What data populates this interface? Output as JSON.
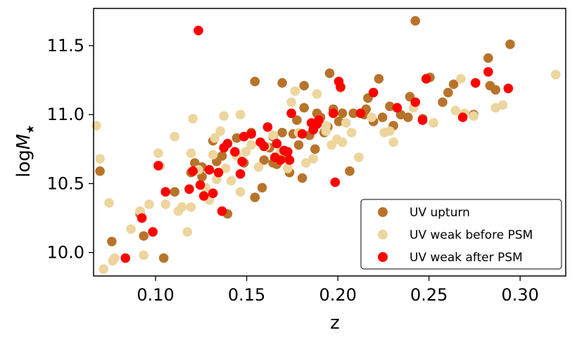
{
  "chart_data": {
    "type": "scatter",
    "xlabel": "z",
    "ylabel_main": "log",
    "ylabel_symbol": "M",
    "ylabel_sub": "★",
    "xlim": [
      0.066,
      0.325
    ],
    "ylim": [
      9.83,
      11.77
    ],
    "xticks": [
      0.1,
      0.15,
      0.2,
      0.25,
      0.3
    ],
    "xtick_labels": [
      "0.10",
      "0.15",
      "0.20",
      "0.25",
      "0.30"
    ],
    "yticks": [
      10.0,
      10.5,
      11.0,
      11.5
    ],
    "ytick_labels": [
      "10.0",
      "10.5",
      "11.0",
      "11.5"
    ],
    "legend_position": "lower-right",
    "series": [
      {
        "name": "UV upturn",
        "color": "#B8732A",
        "points": [
          [
            0.0695,
            10.59
          ],
          [
            0.076,
            10.08
          ],
          [
            0.0915,
            10.28
          ],
          [
            0.0935,
            10.12
          ],
          [
            0.1045,
            9.96
          ],
          [
            0.1105,
            10.44
          ],
          [
            0.1195,
            10.58
          ],
          [
            0.1215,
            10.65
          ],
          [
            0.1255,
            10.62
          ],
          [
            0.1315,
            10.81
          ],
          [
            0.1335,
            10.66
          ],
          [
            0.1365,
            10.7
          ],
          [
            0.1395,
            10.28
          ],
          [
            0.1445,
            10.83
          ],
          [
            0.1485,
            10.65
          ],
          [
            0.1525,
            10.87
          ],
          [
            0.1545,
            10.4
          ],
          [
            0.1585,
            10.47
          ],
          [
            0.1595,
            10.67
          ],
          [
            0.1625,
            10.76
          ],
          [
            0.1645,
            10.84
          ],
          [
            0.1665,
            10.64
          ],
          [
            0.1695,
            10.87
          ],
          [
            0.1715,
            10.71
          ],
          [
            0.1735,
            10.58
          ],
          [
            0.1755,
            10.86
          ],
          [
            0.1775,
            10.96
          ],
          [
            0.1785,
            10.78
          ],
          [
            0.1805,
            10.54
          ],
          [
            0.1815,
            11.05
          ],
          [
            0.1845,
            10.85
          ],
          [
            0.1865,
            10.93
          ],
          [
            0.1885,
            11.01
          ],
          [
            0.1905,
            10.98
          ],
          [
            0.1925,
            10.87
          ],
          [
            0.1945,
            10.91
          ],
          [
            0.1975,
            11.04
          ],
          [
            0.2005,
            10.95
          ],
          [
            0.2025,
            11.01
          ],
          [
            0.2065,
            10.59
          ],
          [
            0.2085,
            11.01
          ],
          [
            0.2145,
            11.0
          ],
          [
            0.2165,
            11.12
          ],
          [
            0.2195,
            10.95
          ],
          [
            0.2245,
            10.98
          ],
          [
            0.2285,
            11.06
          ],
          [
            0.2305,
            10.92
          ],
          [
            0.2345,
            11.0
          ],
          [
            0.2385,
            10.98
          ],
          [
            0.2395,
            11.13
          ],
          [
            0.2425,
            11.68
          ],
          [
            0.2465,
            10.97
          ],
          [
            0.2505,
            11.27
          ],
          [
            0.2575,
            11.09
          ],
          [
            0.2605,
            11.16
          ],
          [
            0.2635,
            11.22
          ],
          [
            0.2745,
            11.0
          ],
          [
            0.2825,
            11.41
          ],
          [
            0.2835,
            11.21
          ],
          [
            0.2865,
            11.18
          ],
          [
            0.2945,
            11.51
          ],
          [
            0.1545,
            11.24
          ],
          [
            0.1695,
            11.23
          ],
          [
            0.1815,
            11.21
          ],
          [
            0.1955,
            11.3
          ],
          [
            0.2225,
            11.26
          ],
          [
            0.2155,
            11.04
          ],
          [
            0.1875,
            10.75
          ],
          [
            0.1645,
            10.65
          ],
          [
            0.1255,
            10.55
          ]
        ]
      },
      {
        "name": "UV weak before PSM",
        "color": "#EDD59E",
        "points": [
          [
            0.0675,
            10.92
          ],
          [
            0.0695,
            10.68
          ],
          [
            0.0715,
            9.88
          ],
          [
            0.0745,
            10.36
          ],
          [
            0.0765,
            9.94
          ],
          [
            0.0775,
            9.96
          ],
          [
            0.0865,
            10.17
          ],
          [
            0.0915,
            10.3
          ],
          [
            0.0935,
            9.98
          ],
          [
            0.0965,
            10.35
          ],
          [
            0.1015,
            10.72
          ],
          [
            0.1025,
            10.63
          ],
          [
            0.1055,
            10.35
          ],
          [
            0.1105,
            10.84
          ],
          [
            0.1145,
            10.33
          ],
          [
            0.1175,
            10.15
          ],
          [
            0.1195,
            10.72
          ],
          [
            0.1205,
            10.97
          ],
          [
            0.1235,
            10.6
          ],
          [
            0.1275,
            10.47
          ],
          [
            0.1295,
            10.38
          ],
          [
            0.1315,
            10.71
          ],
          [
            0.1335,
            10.53
          ],
          [
            0.1355,
            10.88
          ],
          [
            0.1375,
            10.99
          ],
          [
            0.1385,
            10.61
          ],
          [
            0.1415,
            10.52
          ],
          [
            0.1445,
            10.7
          ],
          [
            0.1465,
            10.44
          ],
          [
            0.1495,
            10.73
          ],
          [
            0.1525,
            10.78
          ],
          [
            0.1565,
            10.62
          ],
          [
            0.1605,
            10.77
          ],
          [
            0.1645,
            10.85
          ],
          [
            0.1685,
            10.73
          ],
          [
            0.1725,
            10.61
          ],
          [
            0.1745,
            11.09
          ],
          [
            0.1765,
            11.17
          ],
          [
            0.1785,
            10.87
          ],
          [
            0.1825,
            10.65
          ],
          [
            0.1865,
            10.68
          ],
          [
            0.1885,
            11.15
          ],
          [
            0.1935,
            10.88
          ],
          [
            0.1965,
            10.78
          ],
          [
            0.1995,
            10.82
          ],
          [
            0.2015,
            11.19
          ],
          [
            0.2025,
            10.8
          ],
          [
            0.2045,
            10.94
          ],
          [
            0.2075,
            10.87
          ],
          [
            0.2115,
            10.69
          ],
          [
            0.2185,
            10.98
          ],
          [
            0.2255,
            10.87
          ],
          [
            0.2285,
            10.88
          ],
          [
            0.2305,
            10.8
          ],
          [
            0.2415,
            11.05
          ],
          [
            0.2525,
            10.94
          ],
          [
            0.2645,
            11.03
          ],
          [
            0.2675,
            11.26
          ],
          [
            0.2695,
            11.01
          ],
          [
            0.2745,
            10.99
          ],
          [
            0.2865,
            11.05
          ],
          [
            0.2905,
            11.07
          ],
          [
            0.3195,
            11.29
          ],
          [
            0.1195,
            10.33
          ],
          [
            0.1465,
            11.0
          ],
          [
            0.1125,
            10.3
          ],
          [
            0.1325,
            10.83
          ],
          [
            0.1935,
            10.92
          ]
        ]
      },
      {
        "name": "UV weak after PSM",
        "color": "#FF0000",
        "points": [
          [
            0.0835,
            9.96
          ],
          [
            0.0925,
            10.25
          ],
          [
            0.0985,
            10.15
          ],
          [
            0.1015,
            10.63
          ],
          [
            0.1055,
            10.44
          ],
          [
            0.1185,
            10.46
          ],
          [
            0.1205,
            10.59
          ],
          [
            0.1235,
            11.61
          ],
          [
            0.1245,
            10.49
          ],
          [
            0.1265,
            10.41
          ],
          [
            0.1295,
            10.6
          ],
          [
            0.1315,
            10.43
          ],
          [
            0.1345,
            10.58
          ],
          [
            0.1365,
            10.3
          ],
          [
            0.1375,
            10.76
          ],
          [
            0.1395,
            10.79
          ],
          [
            0.1435,
            10.73
          ],
          [
            0.1465,
            10.57
          ],
          [
            0.1475,
            10.66
          ],
          [
            0.1485,
            10.84
          ],
          [
            0.1525,
            10.86
          ],
          [
            0.1575,
            10.8
          ],
          [
            0.1595,
            10.77
          ],
          [
            0.1615,
            10.91
          ],
          [
            0.1655,
            10.69
          ],
          [
            0.1665,
            10.79
          ],
          [
            0.1685,
            10.67
          ],
          [
            0.1705,
            10.74
          ],
          [
            0.1725,
            10.73
          ],
          [
            0.1735,
            10.67
          ],
          [
            0.1745,
            11.01
          ],
          [
            0.1805,
            10.86
          ],
          [
            0.1855,
            10.94
          ],
          [
            0.1865,
            10.89
          ],
          [
            0.1885,
            10.93
          ],
          [
            0.1895,
            10.96
          ],
          [
            0.1975,
            11.01
          ],
          [
            0.1985,
            10.51
          ],
          [
            0.2005,
            11.24
          ],
          [
            0.2015,
            11.2
          ],
          [
            0.2125,
            11.01
          ],
          [
            0.2195,
            11.16
          ],
          [
            0.2325,
            11.05
          ],
          [
            0.2425,
            11.09
          ],
          [
            0.2465,
            10.96
          ],
          [
            0.2485,
            11.26
          ],
          [
            0.2685,
            10.98
          ],
          [
            0.2755,
            11.23
          ],
          [
            0.2825,
            11.31
          ],
          [
            0.2935,
            11.19
          ]
        ]
      }
    ]
  }
}
